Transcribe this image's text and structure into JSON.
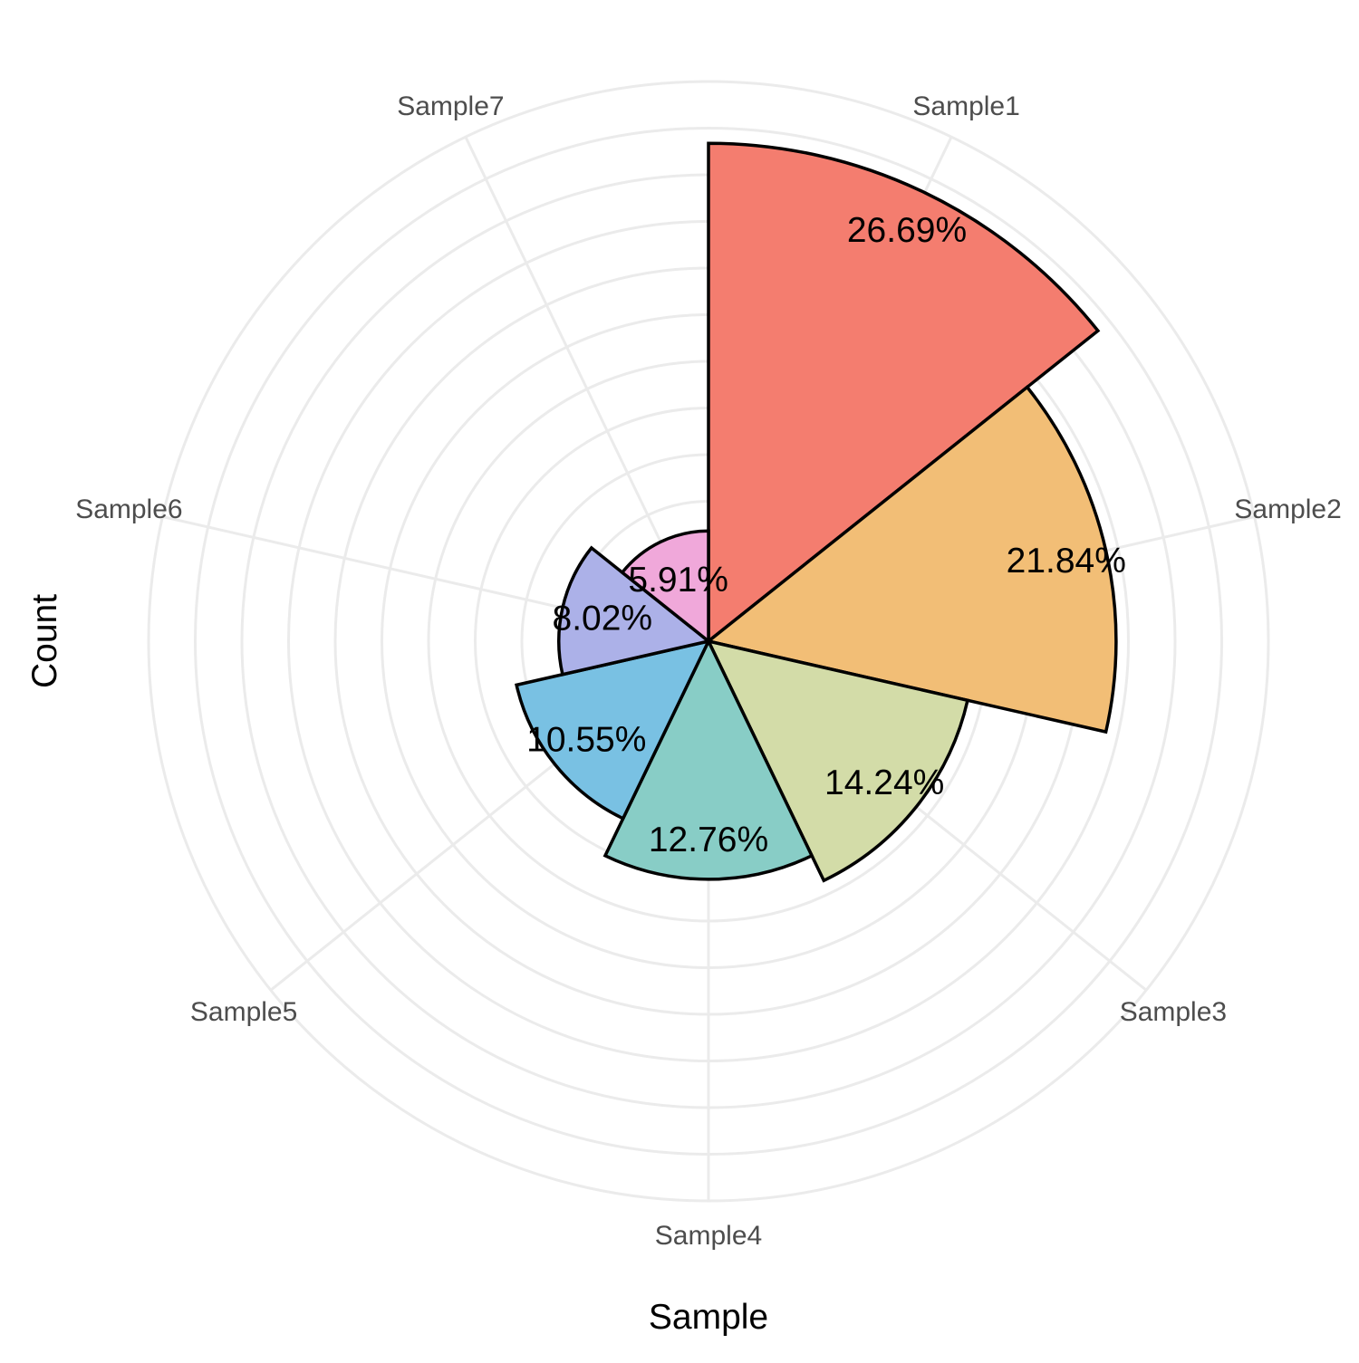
{
  "chart_data": {
    "type": "bar",
    "coord": "polar",
    "xlabel": "Sample",
    "ylabel": "Count",
    "categories": [
      "Sample1",
      "Sample2",
      "Sample3",
      "Sample4",
      "Sample5",
      "Sample6",
      "Sample7"
    ],
    "values": [
      26.69,
      21.84,
      14.24,
      12.76,
      10.55,
      8.02,
      5.91
    ],
    "data_labels": [
      "26.69%",
      "21.84%",
      "14.24%",
      "12.76%",
      "10.55%",
      "8.02%",
      "5.91%"
    ],
    "colors": [
      "#F47D6F",
      "#F2BE76",
      "#D3DCA8",
      "#88CDC6",
      "#79C1E3",
      "#ACB1E8",
      "#F0A8DA"
    ],
    "ylim": [
      0,
      30
    ],
    "grid": true,
    "legend": "none",
    "theme": {
      "background": "#ffffff",
      "grid_color": "#ebebeb",
      "outline_color": "#000000",
      "category_label_color": "#4d4d4d"
    }
  }
}
